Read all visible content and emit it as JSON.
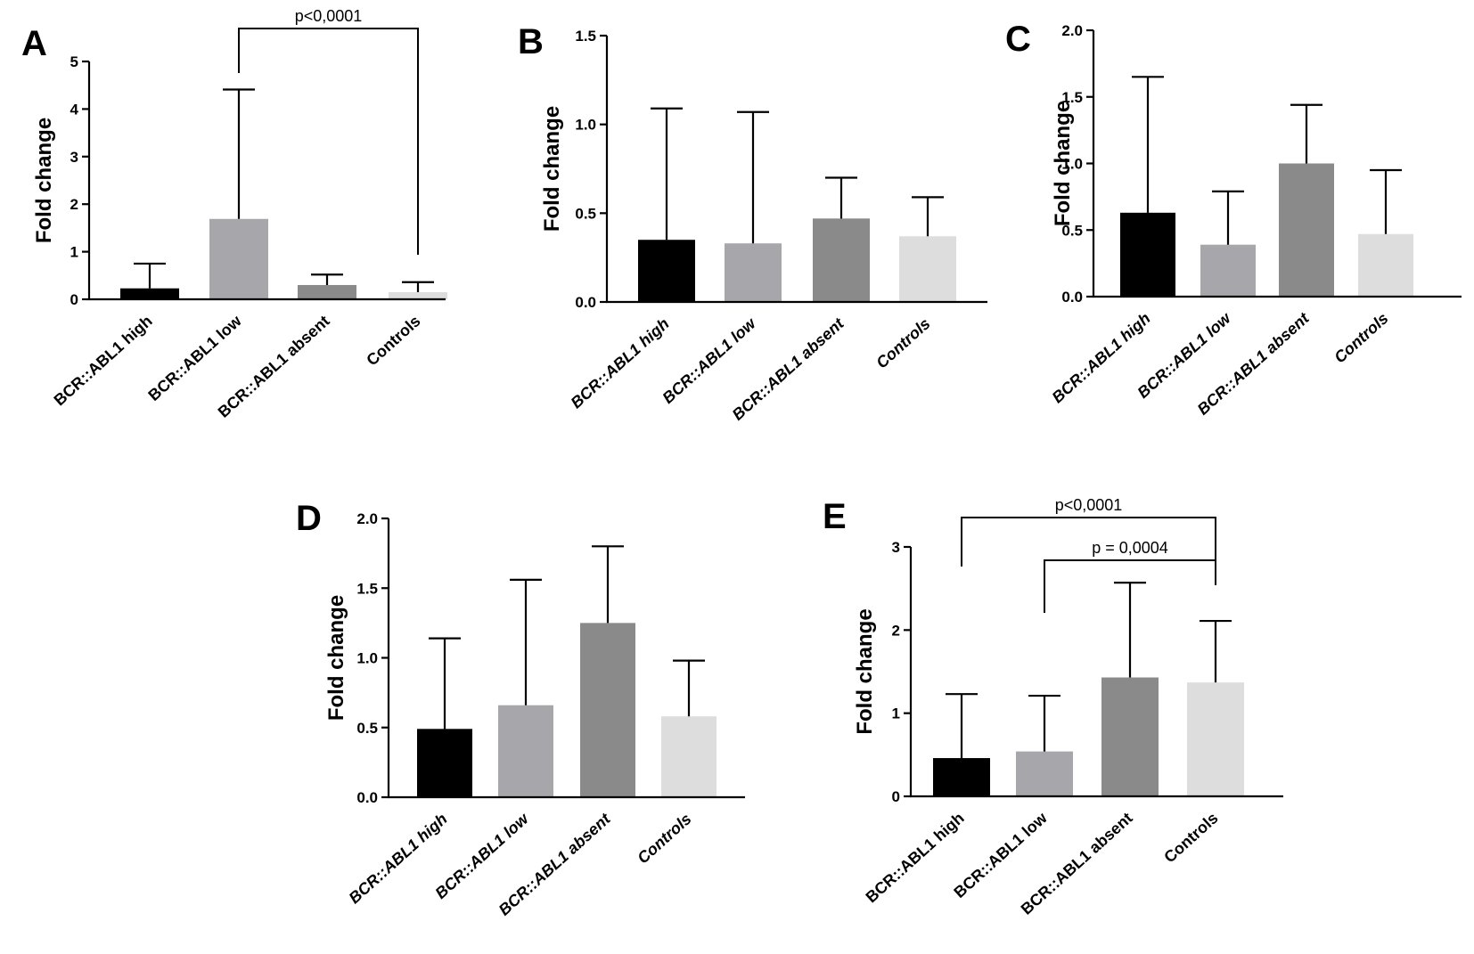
{
  "chart_data": [
    {
      "panel": "A",
      "type": "bar",
      "ylabel": "Fold change",
      "ylim": [
        0,
        5
      ],
      "yticks": [
        "0",
        "1",
        "2",
        "3",
        "4",
        "5"
      ],
      "italic_categories": false,
      "categories": [
        "BCR::ABL1 high",
        "BCR::ABL1 low",
        "BCR::ABL1 absent",
        "Controls"
      ],
      "values": [
        0.23,
        1.69,
        0.3,
        0.15
      ],
      "error_upper": [
        0.75,
        4.41,
        0.52,
        0.36
      ],
      "colors": [
        "#000000",
        "#a7a7ab",
        "#8a8a8a",
        "#dddddd"
      ],
      "significance": [
        {
          "label": "p<0,0001",
          "from": 1,
          "to": 3
        }
      ]
    },
    {
      "panel": "B",
      "type": "bar",
      "ylabel": "Fold change",
      "ylim": [
        0,
        1.5
      ],
      "yticks": [
        "0.0",
        "0.5",
        "1.0",
        "1.5"
      ],
      "italic_categories": true,
      "categories": [
        "BCR::ABL1 high",
        "BCR::ABL1 low",
        "BCR::ABL1 absent",
        "Controls"
      ],
      "values": [
        0.35,
        0.33,
        0.47,
        0.37
      ],
      "error_upper": [
        1.09,
        1.07,
        0.7,
        0.59
      ],
      "colors": [
        "#000000",
        "#a7a7ab",
        "#8a8a8a",
        "#dddddd"
      ],
      "significance": []
    },
    {
      "panel": "C",
      "type": "bar",
      "ylabel": "Fold change",
      "ylim": [
        0,
        2.0
      ],
      "yticks": [
        "0.0",
        "0.5",
        "1.0",
        "1.5",
        "2.0"
      ],
      "italic_categories": true,
      "categories": [
        "BCR::ABL1 high",
        "BCR::ABL1 low",
        "BCR::ABL1 absent",
        "Controls"
      ],
      "values": [
        0.63,
        0.39,
        1.0,
        0.47
      ],
      "error_upper": [
        1.65,
        0.79,
        1.44,
        0.95
      ],
      "colors": [
        "#000000",
        "#a7a7ab",
        "#8a8a8a",
        "#dddddd"
      ],
      "significance": []
    },
    {
      "panel": "D",
      "type": "bar",
      "ylabel": "Fold change",
      "ylim": [
        0,
        2.0
      ],
      "yticks": [
        "0.0",
        "0.5",
        "1.0",
        "1.5",
        "2.0"
      ],
      "italic_categories": true,
      "categories": [
        "BCR::ABL1 high",
        "BCR::ABL1 low",
        "BCR::ABL1 absent",
        "Controls"
      ],
      "values": [
        0.49,
        0.66,
        1.25,
        0.58
      ],
      "error_upper": [
        1.14,
        1.56,
        1.8,
        0.98
      ],
      "colors": [
        "#000000",
        "#a7a7ab",
        "#8a8a8a",
        "#dddddd"
      ],
      "significance": []
    },
    {
      "panel": "E",
      "type": "bar",
      "ylabel": "Fold change",
      "ylim": [
        0,
        3
      ],
      "yticks": [
        "0",
        "1",
        "2",
        "3"
      ],
      "italic_categories": false,
      "categories": [
        "BCR::ABL1 high",
        "BCR::ABL1 low",
        "BCR::ABL1 absent",
        "Controls"
      ],
      "values": [
        0.46,
        0.54,
        1.43,
        1.37
      ],
      "error_upper": [
        1.23,
        1.21,
        2.57,
        2.11
      ],
      "colors": [
        "#000000",
        "#a7a7ab",
        "#8a8a8a",
        "#dddddd"
      ],
      "significance": [
        {
          "label": "p<0,0001",
          "from": 0,
          "to": 3
        },
        {
          "label": "p = 0,0004",
          "from": 1,
          "to": 3
        }
      ]
    }
  ]
}
